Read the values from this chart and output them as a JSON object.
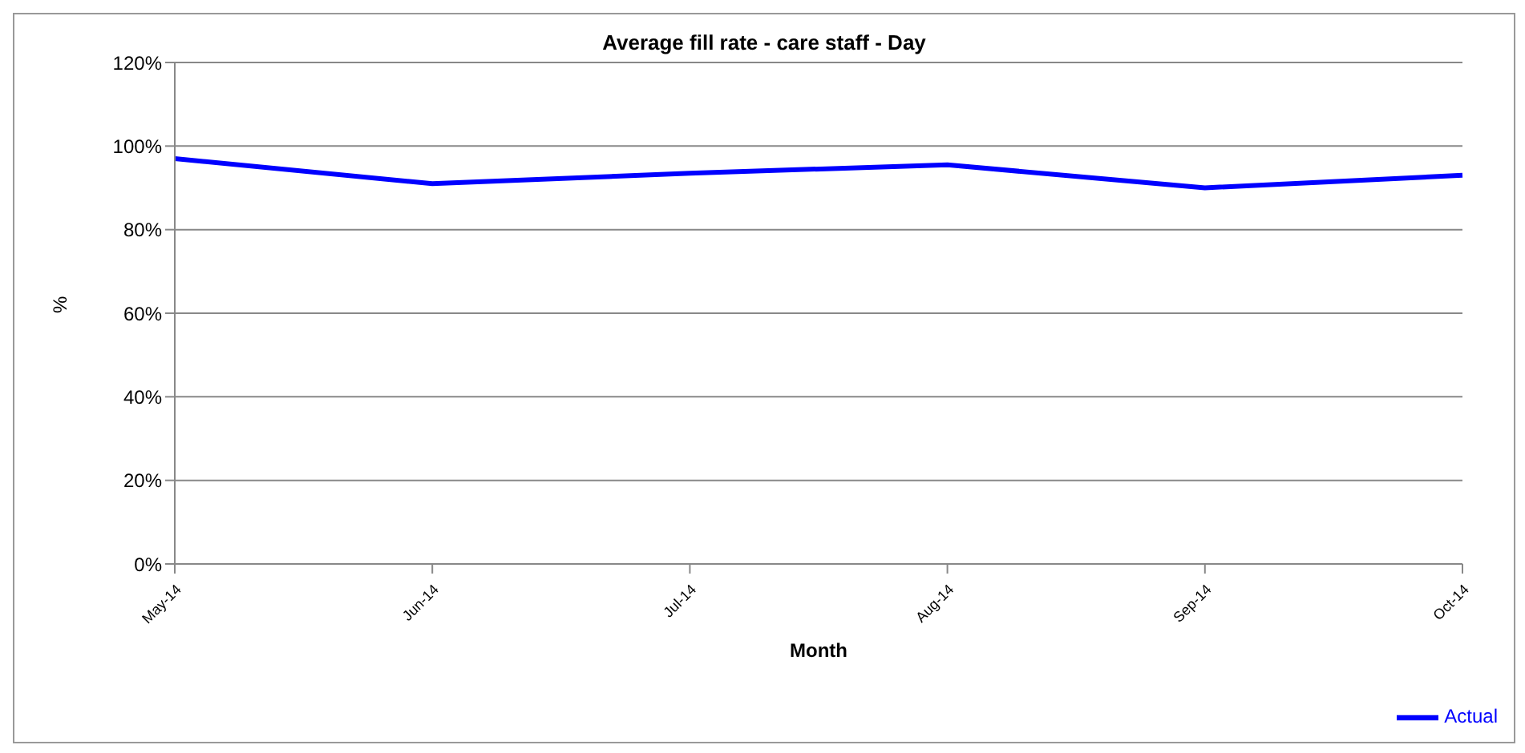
{
  "chart_data": {
    "type": "line",
    "title": "Average fill rate - care staff - Day",
    "xlabel": "Month",
    "ylabel": "%",
    "categories": [
      "May-14",
      "Jun-14",
      "Jul-14",
      "Aug-14",
      "Sep-14",
      "Oct-14"
    ],
    "series": [
      {
        "name": "Actual",
        "color": "#0000ff",
        "values": [
          97,
          91,
          93.5,
          95.5,
          90,
          93
        ]
      }
    ],
    "ylim": [
      0,
      120
    ],
    "yticks": [
      {
        "value": 0,
        "label": "0%"
      },
      {
        "value": 20,
        "label": "20%"
      },
      {
        "value": 40,
        "label": "40%"
      },
      {
        "value": 60,
        "label": "60%"
      },
      {
        "value": 80,
        "label": "80%"
      },
      {
        "value": 100,
        "label": "100%"
      },
      {
        "value": 120,
        "label": "120%"
      }
    ],
    "grid": "y",
    "legend": "bottom right",
    "marker": "none",
    "line_style": "solid"
  }
}
